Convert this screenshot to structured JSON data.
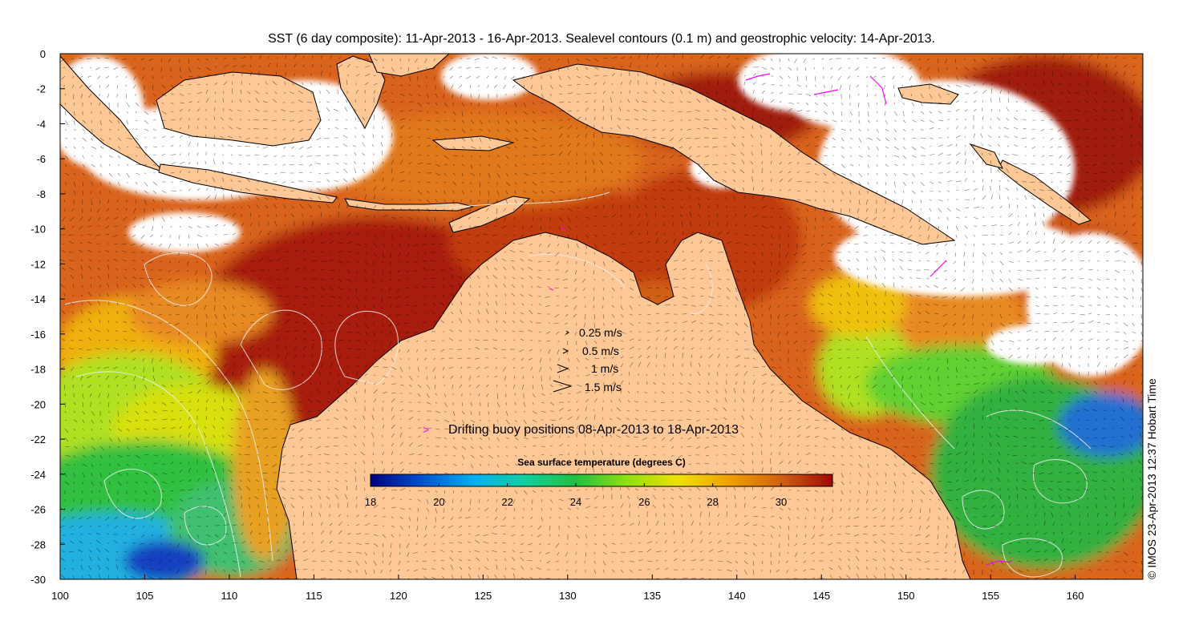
{
  "title": "SST (6 day composite): 11-Apr-2013 - 16-Apr-2013. Sealevel contours (0.1 m) and geostrophic velocity: 14-Apr-2013.",
  "credit": "© IMOS 23-Apr-2013 12:37 Hobart Time",
  "x_ticks": [
    "100",
    "105",
    "110",
    "115",
    "120",
    "125",
    "130",
    "135",
    "140",
    "145",
    "150",
    "155",
    "160"
  ],
  "y_ticks": [
    "0",
    "-2",
    "-4",
    "-6",
    "-8",
    "-10",
    "-12",
    "-14",
    "-16",
    "-18",
    "-20",
    "-22",
    "-24",
    "-26",
    "-28",
    "-30"
  ],
  "velocity_legend": [
    {
      "label": "0.25 m/s",
      "speed": 0.25
    },
    {
      "label": "0.5 m/s",
      "speed": 0.5
    },
    {
      "label": "1 m/s",
      "speed": 1
    },
    {
      "label": "1.5 m/s",
      "speed": 1.5
    }
  ],
  "buoy_legend": {
    "symbol": ">",
    "label": "Drifting buoy positions 08-Apr-2013 to 18-Apr-2013",
    "color": "#ff00ff"
  },
  "colorbar": {
    "title": "Sea surface temperature (degrees C)",
    "min": 18,
    "max": 31.5,
    "ticks": [
      "18",
      "20",
      "22",
      "24",
      "26",
      "28",
      "30"
    ],
    "stops": [
      "#00007f",
      "#0050d0",
      "#00b0f0",
      "#10d0a0",
      "#20c040",
      "#90e010",
      "#f0e000",
      "#f0a000",
      "#d06010",
      "#a00808"
    ]
  },
  "colors": {
    "land": "#fdc895",
    "cloud": "#ffffff",
    "contour": "#f0f0f0",
    "vector": "#000000",
    "buoy": "#ff00ff"
  }
}
